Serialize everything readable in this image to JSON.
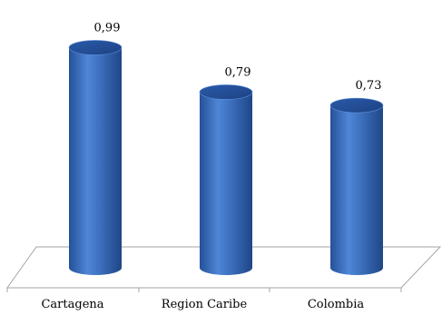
{
  "chart_data": {
    "type": "bar",
    "style": "3d-cylinder",
    "categories": [
      "Cartagena",
      "Region Caribe",
      "Colombia"
    ],
    "values": [
      0.99,
      0.79,
      0.73
    ],
    "value_labels": [
      "0,99",
      "0,79",
      "0,73"
    ],
    "ylim": [
      0,
      1.0
    ],
    "grid": false,
    "legend": "none",
    "bar_color": "#3f73c2"
  }
}
